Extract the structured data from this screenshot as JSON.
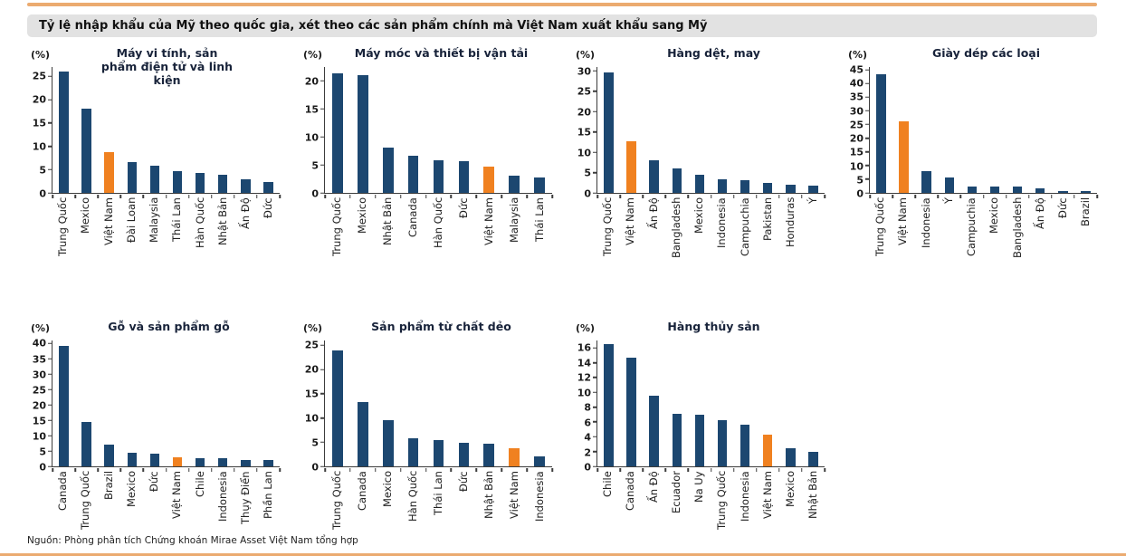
{
  "page": {
    "header_title": "Tỷ lệ nhập khẩu của Mỹ theo quốc gia, xét theo các sản phẩm chính mà Việt Nam xuất khẩu sang Mỹ",
    "source_note": "Nguồn: Phòng phân tích Chứng khoán Mirae Asset Việt Nam tổng hợp"
  },
  "colors": {
    "bar_default": "#1C4770",
    "bar_highlight": "#F08120",
    "highlight_country": "Việt Nam",
    "accent_line": "#EBAB70",
    "header_bg": "#E2E2E2"
  },
  "chart_data": [
    {
      "type": "bar",
      "title": "Máy vi tính, sản phẩm điện tử và linh kiện",
      "unit": "(%)",
      "categories": [
        "Trung Quốc",
        "Mexico",
        "Việt Nam",
        "Đài Loan",
        "Malaysia",
        "Thái Lan",
        "Hàn Quốc",
        "Nhật Bản",
        "Ấn Độ",
        "Đức"
      ],
      "values": [
        26.1,
        18.0,
        8.8,
        6.7,
        5.9,
        4.7,
        4.3,
        3.9,
        3.0,
        2.4
      ],
      "yticks": [
        0,
        5,
        10,
        15,
        20,
        25
      ],
      "ylim": [
        0,
        27
      ],
      "grid": false,
      "legend": "none"
    },
    {
      "type": "bar",
      "title": "Máy móc và thiết bị vận tải",
      "unit": "(%)",
      "categories": [
        "Trung Quốc",
        "Mexico",
        "Nhật Bản",
        "Canada",
        "Hàn Quốc",
        "Đức",
        "Việt Nam",
        "Malaysia",
        "Thái Lan"
      ],
      "values": [
        21.3,
        21.1,
        8.1,
        6.6,
        5.9,
        5.7,
        4.7,
        3.0,
        2.7
      ],
      "yticks": [
        0,
        5,
        10,
        15,
        20
      ],
      "ylim": [
        0,
        22.5
      ],
      "grid": false,
      "legend": "none"
    },
    {
      "type": "bar",
      "title": "Hàng dệt, may",
      "unit": "(%)",
      "categories": [
        "Trung Quốc",
        "Việt Nam",
        "Ấn Độ",
        "Bangladesh",
        "Mexico",
        "Indonesia",
        "Campuchia",
        "Pakistan",
        "Honduras",
        "Ý"
      ],
      "values": [
        29.6,
        12.8,
        8.0,
        6.1,
        4.5,
        3.3,
        3.1,
        2.4,
        2.0,
        1.8
      ],
      "yticks": [
        0,
        5,
        10,
        15,
        20,
        25,
        30
      ],
      "ylim": [
        0,
        31
      ],
      "grid": false,
      "legend": "none"
    },
    {
      "type": "bar",
      "title": "Giày dép các loại",
      "unit": "(%)",
      "categories": [
        "Trung Quốc",
        "Việt Nam",
        "Indonesia",
        "Ý",
        "Campuchia",
        "Mexico",
        "Bangladesh",
        "Ấn Độ",
        "Đức",
        "Brazil"
      ],
      "values": [
        43.5,
        26.0,
        8.0,
        5.5,
        2.4,
        2.4,
        2.2,
        1.7,
        0.8,
        0.7
      ],
      "yticks": [
        0,
        5,
        10,
        15,
        20,
        25,
        30,
        35,
        40,
        45
      ],
      "ylim": [
        0,
        46
      ],
      "grid": false,
      "legend": "none"
    },
    {
      "type": "bar",
      "title": "Gỗ và sản phẩm gỗ",
      "unit": "(%)",
      "categories": [
        "Canada",
        "Trung Quốc",
        "Brazil",
        "Mexico",
        "Đức",
        "Việt Nam",
        "Chile",
        "Indonesia",
        "Thụy Điển",
        "Phần Lan"
      ],
      "values": [
        39.3,
        14.4,
        7.0,
        4.4,
        4.1,
        3.0,
        2.8,
        2.7,
        2.1,
        2.0
      ],
      "yticks": [
        0,
        5,
        10,
        15,
        20,
        25,
        30,
        35,
        40
      ],
      "ylim": [
        0,
        41
      ],
      "grid": false,
      "legend": "none"
    },
    {
      "type": "bar",
      "title": "Sản phẩm từ chất dẻo",
      "unit": "(%)",
      "categories": [
        "Trung Quốc",
        "Canada",
        "Mexico",
        "Hàn Quốc",
        "Thái Lan",
        "Đức",
        "Nhật Bản",
        "Việt Nam",
        "Indonesia"
      ],
      "values": [
        23.9,
        13.3,
        9.5,
        5.8,
        5.4,
        4.9,
        4.6,
        3.8,
        2.1
      ],
      "yticks": [
        0,
        5,
        10,
        15,
        20,
        25
      ],
      "ylim": [
        0,
        26
      ],
      "grid": false,
      "legend": "none"
    },
    {
      "type": "bar",
      "title": "Hàng thủy sản",
      "unit": "(%)",
      "categories": [
        "Chile",
        "Canada",
        "Ấn Độ",
        "Ecuador",
        "Na Uy",
        "Trung Quốc",
        "Indonesia",
        "Việt Nam",
        "Mexico",
        "Nhật Bản"
      ],
      "values": [
        16.5,
        14.7,
        9.6,
        7.1,
        7.0,
        6.2,
        5.6,
        4.3,
        2.5,
        2.0
      ],
      "yticks": [
        0,
        2,
        4,
        6,
        8,
        10,
        12,
        14,
        16
      ],
      "ylim": [
        0,
        17
      ],
      "grid": false,
      "legend": "none"
    }
  ]
}
